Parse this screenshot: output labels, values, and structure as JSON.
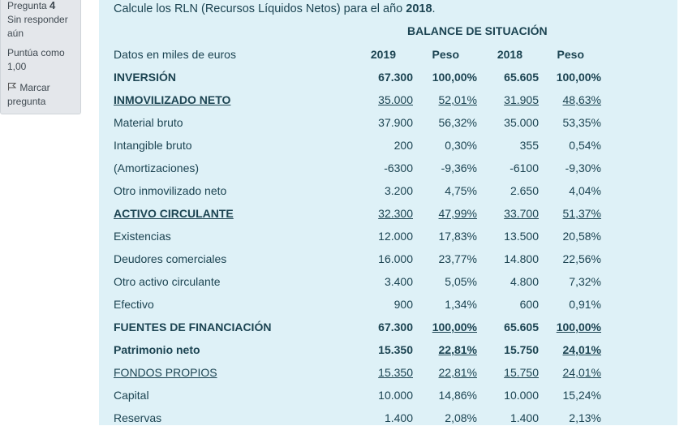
{
  "sidebar": {
    "question_label": "Pregunta",
    "question_number": "4",
    "status": [
      "Sin responder",
      "aún"
    ],
    "score": [
      "Puntúa como",
      "1,00"
    ],
    "flag": [
      "Marcar",
      "pregunta"
    ],
    "flag_icon": "flag-icon"
  },
  "question": {
    "text": "Calcule los RLN (Recursos Líquidos Netos) para el año ",
    "year": "2018",
    "end": "."
  },
  "table": {
    "title": "BALANCE DE SITUACIÓN",
    "headers": [
      "Datos en miles de euros",
      "2019",
      "Peso",
      "2018",
      "Peso"
    ],
    "rows": [
      {
        "label": "INVERSIÓN",
        "values": [
          "67.300",
          "100,00%",
          "65.605",
          "100,00%"
        ],
        "label_style": "b",
        "value_style": [
          "b",
          "b",
          "b",
          "b"
        ]
      },
      {
        "label": "INMOVILIZADO NETO",
        "values": [
          "35.000",
          "52,01%",
          "31.905",
          "48,63%"
        ],
        "label_style": "b u",
        "value_style": [
          "u",
          "u",
          "u",
          "u"
        ]
      },
      {
        "label": "Material bruto",
        "values": [
          "37.900",
          "56,32%",
          "35.000",
          "53,35%"
        ]
      },
      {
        "label": "Intangible bruto",
        "values": [
          "200",
          "0,30%",
          "355",
          "0,54%"
        ]
      },
      {
        "label": "(Amortizaciones)",
        "values": [
          "-6300",
          "-9,36%",
          "-6100",
          "-9,30%"
        ]
      },
      {
        "label": "Otro inmovilizado neto",
        "values": [
          "3.200",
          "4,75%",
          "2.650",
          "4,04%"
        ]
      },
      {
        "label": "ACTIVO CIRCULANTE",
        "values": [
          "32.300",
          "47,99%",
          "33.700",
          "51,37%"
        ],
        "label_style": "b u",
        "value_style": [
          "u",
          "u",
          "u",
          "u"
        ]
      },
      {
        "label": "Existencias",
        "values": [
          "12.000",
          "17,83%",
          "13.500",
          "20,58%"
        ]
      },
      {
        "label": "Deudores comerciales",
        "values": [
          "16.000",
          "23,77%",
          "14.800",
          "22,56%"
        ]
      },
      {
        "label": "Otro activo circulante",
        "values": [
          "3.400",
          "5,05%",
          "4.800",
          "7,32%"
        ]
      },
      {
        "label": "Efectivo",
        "values": [
          "900",
          "1,34%",
          "600",
          "0,91%"
        ]
      },
      {
        "label": "FUENTES DE FINANCIACIÓN",
        "values": [
          "67.300",
          "100,00%",
          "65.605",
          "100,00%"
        ],
        "label_style": "b",
        "value_style": [
          "b",
          "b u",
          "b",
          "b u"
        ]
      },
      {
        "label": "Patrimonio neto",
        "values": [
          "15.350",
          "22,81%",
          "15.750",
          "24,01%"
        ],
        "label_style": "b",
        "value_style": [
          "b",
          "b u",
          "b",
          "b u"
        ]
      },
      {
        "label": "FONDOS PROPIOS",
        "values": [
          "15.350",
          "22,81%",
          "15.750",
          "24,01%"
        ],
        "label_style": "u",
        "value_style": [
          "u",
          "u",
          "u",
          "u"
        ]
      },
      {
        "label": "Capital",
        "values": [
          "10.000",
          "14,86%",
          "10.000",
          "15,24%"
        ]
      },
      {
        "label": "Reservas",
        "values": [
          "1.400",
          "2,08%",
          "1.400",
          "2,13%"
        ]
      }
    ]
  }
}
